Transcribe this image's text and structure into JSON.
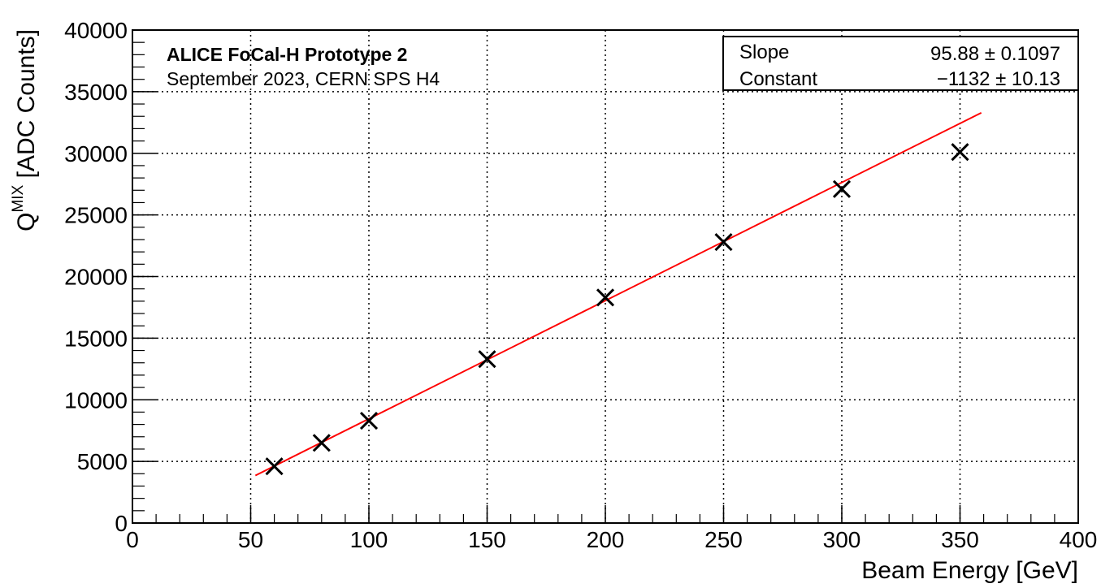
{
  "chart_data": {
    "type": "scatter",
    "xlabel": "Beam Energy [GeV]",
    "ylabel": {
      "base": "Q",
      "superscript": "MIX",
      "rest": " [ADC Counts]"
    },
    "xlim": [
      0,
      400
    ],
    "ylim": [
      0,
      40000
    ],
    "xticks": [
      "0",
      "50",
      "100",
      "150",
      "200",
      "250",
      "300",
      "350",
      "400"
    ],
    "yticks": [
      "0",
      "5000",
      "10000",
      "15000",
      "20000",
      "25000",
      "30000",
      "35000",
      "40000"
    ],
    "grid": true,
    "annotations": [
      "ALICE FoCal-H Prototype 2",
      "September 2023, CERN SPS H4"
    ],
    "series": [
      {
        "marker": "x",
        "color": "#000000",
        "x": [
          60,
          80,
          100,
          150,
          200,
          250,
          300,
          350
        ],
        "y": [
          4600,
          6500,
          8300,
          13300,
          18300,
          22800,
          27100,
          30100
        ]
      }
    ],
    "fit": {
      "color": "#ff0000",
      "slope": 95.88,
      "constant": -1132,
      "x_range": [
        52,
        359
      ]
    },
    "stats_box": {
      "placement": "top-right",
      "rows": [
        {
          "label": "Slope",
          "value": "95.88 ± 0.1097"
        },
        {
          "label": "Constant",
          "value": "−1132 ± 10.13"
        }
      ]
    }
  }
}
